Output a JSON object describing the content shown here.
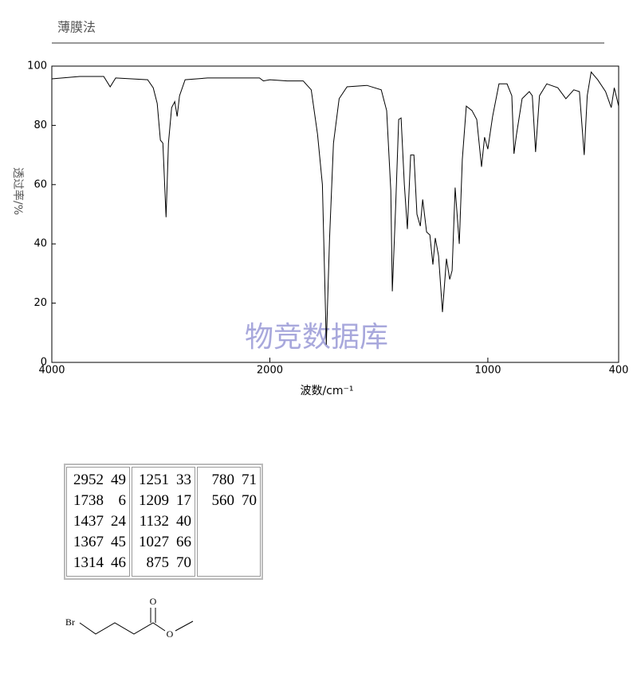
{
  "chart_data": {
    "type": "line",
    "title": "薄膜法",
    "xlabel": "波数/cm⁻¹",
    "ylabel": "透过率/%",
    "annotations": [
      "物竞数据库"
    ],
    "x": [
      4000,
      3744,
      3524,
      3465,
      3414,
      3121,
      3070,
      3033,
      3004,
      2981,
      2952,
      2930,
      2901,
      2872,
      2850,
      2828,
      2777,
      2571,
      2278,
      2095,
      2059,
      2000,
      1920,
      1847,
      1810,
      1781,
      1759,
      1741,
      1726,
      1708,
      1682,
      1646,
      1555,
      1489,
      1464,
      1445,
      1438,
      1423,
      1409,
      1398,
      1383,
      1369,
      1354,
      1339,
      1325,
      1310,
      1299,
      1281,
      1266,
      1252,
      1241,
      1226,
      1208,
      1190,
      1175,
      1164,
      1150,
      1131,
      1117,
      1099,
      1073,
      1051,
      1029,
      1015,
      1000,
      978,
      949,
      912,
      890,
      880,
      869,
      843,
      810,
      796,
      781,
      763,
      730,
      679,
      642,
      606,
      580,
      558,
      544,
      526,
      496,
      460,
      434,
      420,
      400
    ],
    "series": [
      {
        "color": "#000000",
        "values": [
          95.7,
          96.5,
          96.5,
          93,
          96,
          95.4,
          92.7,
          87.4,
          75,
          74,
          49,
          74,
          86,
          88,
          83,
          90,
          95.4,
          96,
          96,
          96,
          95,
          95.4,
          95,
          95,
          92,
          77,
          60,
          6,
          42,
          74,
          89,
          93,
          93.5,
          92,
          85,
          58,
          24,
          52,
          82,
          82.5,
          60,
          45,
          70,
          70,
          50,
          46,
          55,
          44,
          43,
          33,
          42,
          36,
          17,
          35,
          28,
          31,
          59,
          40,
          68.5,
          86.5,
          85,
          82,
          66,
          76,
          72,
          83,
          94,
          94,
          90,
          70.4,
          76.6,
          89,
          91.4,
          90,
          71,
          90,
          94,
          92.7,
          89,
          92,
          91.4,
          70,
          90,
          98,
          95.4,
          91.4,
          86,
          92.7,
          86.5
        ]
      }
    ],
    "xlim": [
      4000,
      400
    ],
    "xticks": [
      4000,
      2000,
      1000,
      400
    ],
    "ylim": [
      0,
      100
    ],
    "yticks": [
      0,
      20,
      40,
      60,
      80,
      100
    ]
  },
  "table": {
    "columns": [
      [
        [
          2952,
          49
        ],
        [
          1738,
          6
        ],
        [
          1437,
          24
        ],
        [
          1367,
          45
        ],
        [
          1314,
          46
        ]
      ],
      [
        [
          1251,
          33
        ],
        [
          1209,
          17
        ],
        [
          1132,
          40
        ],
        [
          1027,
          66
        ],
        [
          875,
          70
        ]
      ],
      [
        [
          780,
          71
        ],
        [
          560,
          70
        ]
      ]
    ]
  },
  "molecule": {
    "atoms": [
      "Br",
      "O",
      "O"
    ]
  }
}
